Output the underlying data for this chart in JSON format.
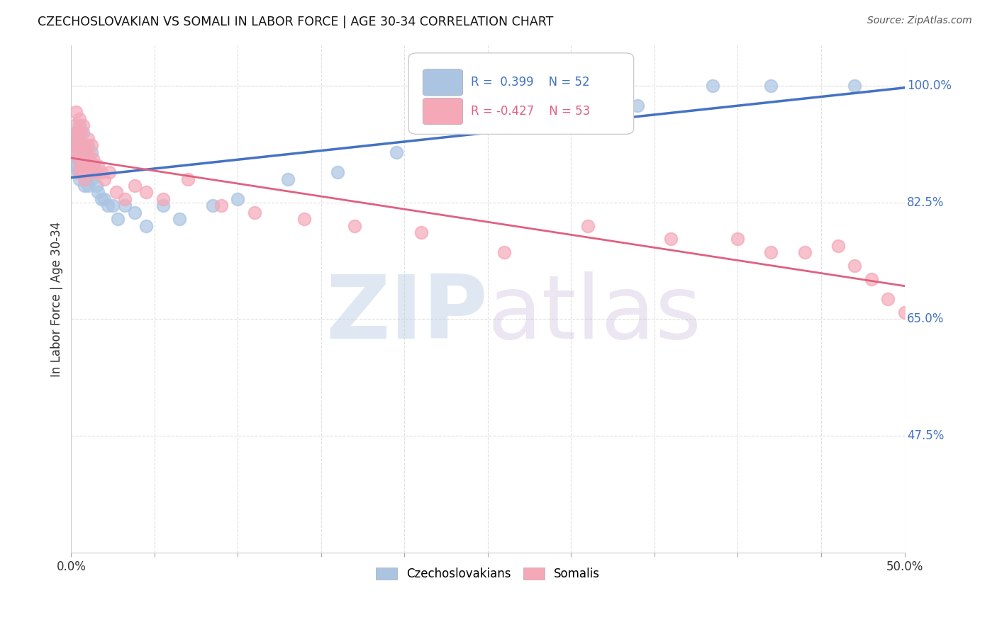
{
  "title": "CZECHOSLOVAKIAN VS SOMALI IN LABOR FORCE | AGE 30-34 CORRELATION CHART",
  "source": "Source: ZipAtlas.com",
  "ylabel": "In Labor Force | Age 30-34",
  "xlim": [
    0.0,
    0.5
  ],
  "ylim": [
    0.3,
    1.06
  ],
  "legend_R_czech": "0.399",
  "legend_N_czech": "52",
  "legend_R_somali": "-0.427",
  "legend_N_somali": "53",
  "czech_color": "#aac4e2",
  "somali_color": "#f4a8b8",
  "czech_line_color": "#4472c4",
  "somali_line_color": "#e06080",
  "background_color": "#ffffff",
  "grid_color": "#e0e0e0",
  "title_color": "#111111",
  "right_label_color": "#4472c4",
  "czech_x": [
    0.001,
    0.002,
    0.002,
    0.003,
    0.003,
    0.003,
    0.004,
    0.004,
    0.005,
    0.005,
    0.005,
    0.006,
    0.006,
    0.006,
    0.007,
    0.007,
    0.008,
    0.008,
    0.008,
    0.009,
    0.009,
    0.01,
    0.01,
    0.01,
    0.011,
    0.012,
    0.012,
    0.013,
    0.014,
    0.015,
    0.016,
    0.018,
    0.02,
    0.022,
    0.025,
    0.028,
    0.032,
    0.038,
    0.045,
    0.055,
    0.065,
    0.085,
    0.1,
    0.13,
    0.16,
    0.195,
    0.24,
    0.29,
    0.34,
    0.385,
    0.42,
    0.47
  ],
  "czech_y": [
    0.92,
    0.91,
    0.88,
    0.93,
    0.9,
    0.88,
    0.91,
    0.87,
    0.94,
    0.89,
    0.86,
    0.91,
    0.89,
    0.87,
    0.93,
    0.88,
    0.87,
    0.9,
    0.85,
    0.89,
    0.86,
    0.91,
    0.88,
    0.85,
    0.87,
    0.9,
    0.86,
    0.88,
    0.87,
    0.85,
    0.84,
    0.83,
    0.83,
    0.82,
    0.82,
    0.8,
    0.82,
    0.81,
    0.79,
    0.82,
    0.8,
    0.82,
    0.83,
    0.86,
    0.87,
    0.9,
    0.95,
    0.95,
    0.97,
    1.0,
    1.0,
    1.0
  ],
  "somali_x": [
    0.001,
    0.002,
    0.002,
    0.003,
    0.003,
    0.004,
    0.004,
    0.005,
    0.005,
    0.005,
    0.006,
    0.006,
    0.007,
    0.007,
    0.007,
    0.008,
    0.008,
    0.009,
    0.009,
    0.01,
    0.01,
    0.011,
    0.012,
    0.012,
    0.013,
    0.014,
    0.015,
    0.016,
    0.018,
    0.02,
    0.023,
    0.027,
    0.032,
    0.038,
    0.045,
    0.055,
    0.07,
    0.09,
    0.11,
    0.14,
    0.17,
    0.21,
    0.26,
    0.31,
    0.36,
    0.4,
    0.42,
    0.44,
    0.46,
    0.47,
    0.48,
    0.49,
    0.5
  ],
  "somali_y": [
    0.92,
    0.94,
    0.9,
    0.96,
    0.91,
    0.93,
    0.89,
    0.95,
    0.9,
    0.87,
    0.93,
    0.88,
    0.94,
    0.91,
    0.87,
    0.9,
    0.86,
    0.91,
    0.88,
    0.92,
    0.87,
    0.89,
    0.91,
    0.87,
    0.89,
    0.88,
    0.87,
    0.88,
    0.87,
    0.86,
    0.87,
    0.84,
    0.83,
    0.85,
    0.84,
    0.83,
    0.86,
    0.82,
    0.81,
    0.8,
    0.79,
    0.78,
    0.75,
    0.79,
    0.77,
    0.77,
    0.75,
    0.75,
    0.76,
    0.73,
    0.71,
    0.68,
    0.66
  ]
}
